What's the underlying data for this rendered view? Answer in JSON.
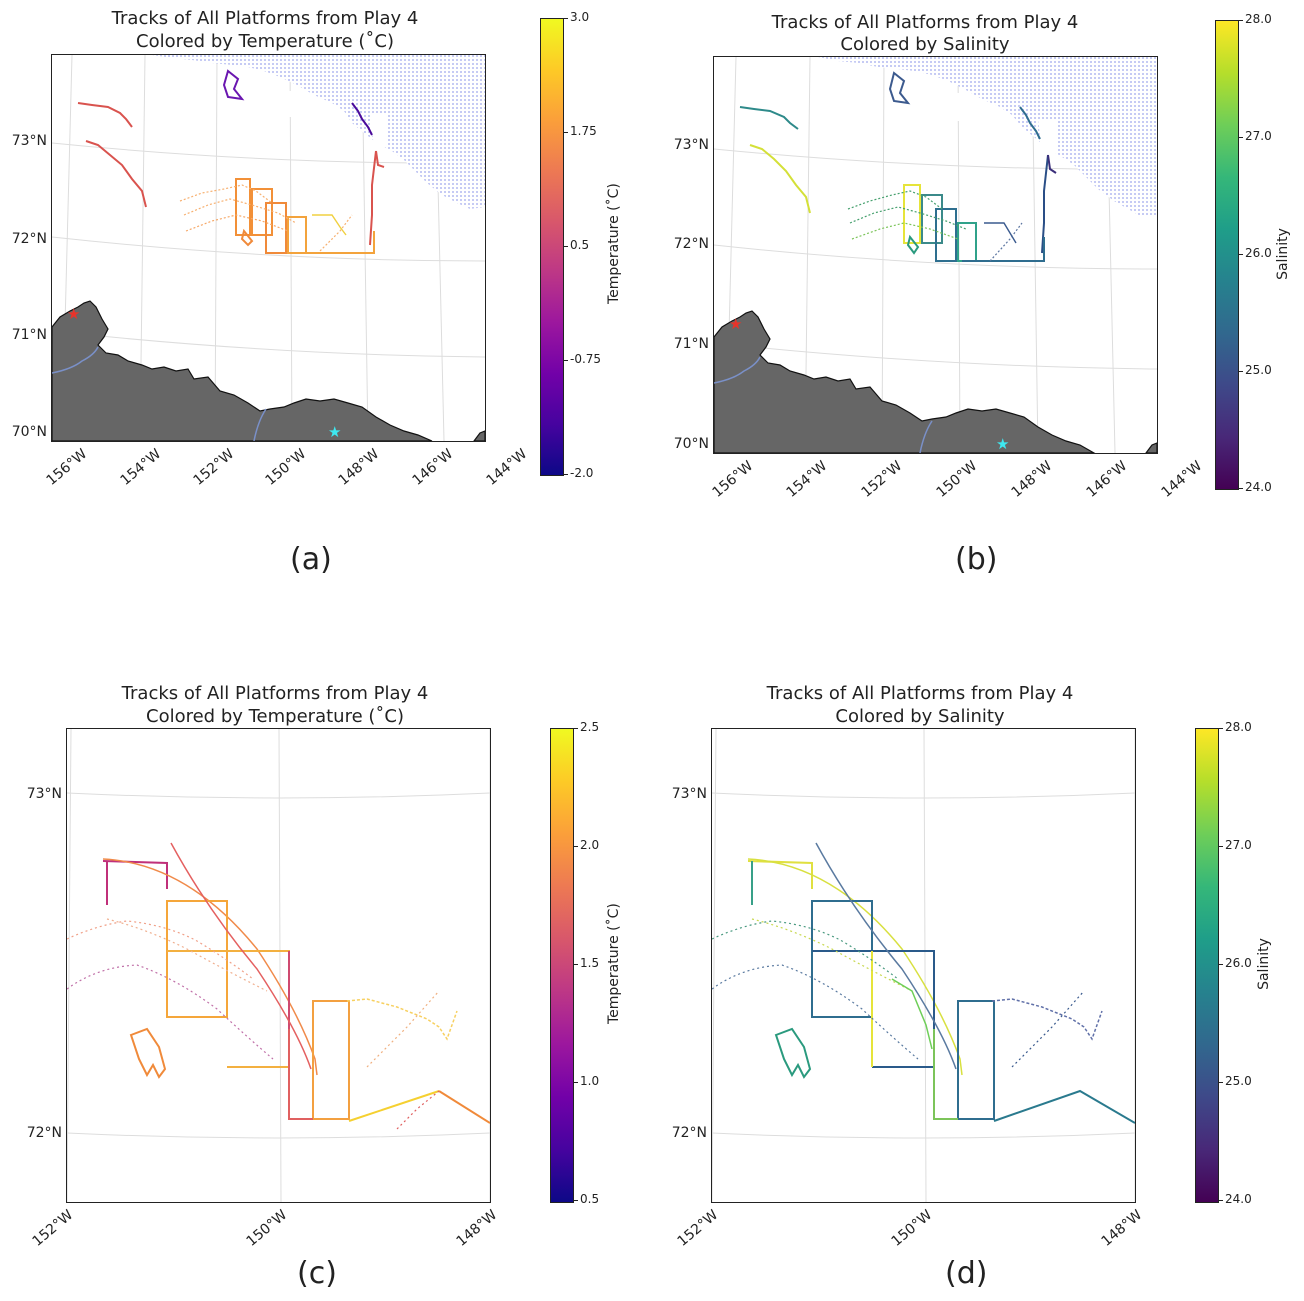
{
  "panels": [
    {
      "id": "a",
      "title_line1": "Tracks of All Platforms from Play 4",
      "title_line2": "Colored by Temperature (˚C)",
      "lat_labels": [
        "73°N",
        "72°N",
        "71°N",
        "70°N"
      ],
      "lon_labels": [
        "156°W",
        "154°W",
        "152°W",
        "150°W",
        "148°W",
        "146°W",
        "144°W"
      ],
      "colorbar": {
        "label": "Temperature (˚C)",
        "colormap": "plasma",
        "ticks": [
          "3.0",
          "1.75",
          "0.5",
          "-0.75",
          "-2.0"
        ]
      },
      "caption": "(a)"
    },
    {
      "id": "b",
      "title_line1": "Tracks of All Platforms from Play 4",
      "title_line2": "Colored by Salinity",
      "lat_labels": [
        "73°N",
        "72°N",
        "71°N",
        "70°N"
      ],
      "lon_labels": [
        "156°W",
        "154°W",
        "152°W",
        "150°W",
        "148°W",
        "146°W",
        "144°W"
      ],
      "colorbar": {
        "label": "Salinity",
        "colormap": "viridis",
        "ticks": [
          "28.0",
          "27.0",
          "26.0",
          "25.0",
          "24.0"
        ]
      },
      "caption": "(b)"
    },
    {
      "id": "c",
      "title_line1": "Tracks of All Platforms from Play 4",
      "title_line2": "Colored by Temperature (˚C)",
      "lat_labels": [
        "73°N",
        "72°N"
      ],
      "lon_labels": [
        "152°W",
        "150°W",
        "148°W"
      ],
      "colorbar": {
        "label": "Temperature (˚C)",
        "colormap": "plasma",
        "ticks": [
          "2.5",
          "2.0",
          "1.5",
          "1.0",
          "0.5"
        ]
      },
      "caption": "(c)"
    },
    {
      "id": "d",
      "title_line1": "Tracks of All Platforms from Play 4",
      "title_line2": "Colored by Salinity",
      "lat_labels": [
        "73°N",
        "72°N"
      ],
      "lon_labels": [
        "152°W",
        "150°W",
        "148°W"
      ],
      "colorbar": {
        "label": "Salinity",
        "colormap": "viridis",
        "ticks": [
          "28.0",
          "27.0",
          "26.0",
          "25.0",
          "24.0"
        ]
      },
      "caption": "(d)"
    }
  ],
  "colors": {
    "land": "#666666",
    "ice_hatch": "#aab0f0",
    "marker_red": "#e8332a",
    "marker_cyan": "#3ee8f0",
    "river": "#7a90c8",
    "grid": "#dddddd"
  }
}
